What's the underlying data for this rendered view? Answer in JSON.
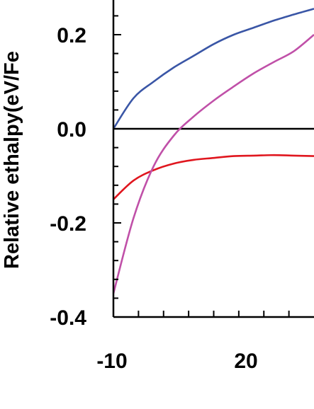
{
  "chart_data": {
    "type": "line",
    "title": "",
    "xlabel": "",
    "ylabel": "Relative ethalpy(eV/Fe",
    "xlim": [
      -10,
      30
    ],
    "ylim": [
      -0.4,
      0.26
    ],
    "x_ticks": [
      -10,
      20
    ],
    "x_tick_labels": [
      "-10",
      "20"
    ],
    "y_ticks": [
      -0.4,
      -0.2,
      0.0,
      0.2
    ],
    "y_tick_labels": [
      "-0.4",
      "-0.2",
      "0.0",
      "0.2"
    ],
    "reference_line_y": 0.0,
    "grid": false,
    "series": [
      {
        "color": "#3a56a6",
        "points": [
          [
            -10,
            0.0
          ],
          [
            -6,
            0.065
          ],
          [
            -2,
            0.1
          ],
          [
            2,
            0.13
          ],
          [
            6,
            0.155
          ],
          [
            10,
            0.18
          ],
          [
            14,
            0.2
          ],
          [
            18,
            0.215
          ],
          [
            22,
            0.23
          ],
          [
            26,
            0.243
          ],
          [
            30,
            0.255
          ]
        ]
      },
      {
        "color": "#e0161e",
        "points": [
          [
            -10,
            -0.15
          ],
          [
            -6,
            -0.11
          ],
          [
            -2,
            -0.088
          ],
          [
            2,
            -0.074
          ],
          [
            6,
            -0.066
          ],
          [
            10,
            -0.062
          ],
          [
            14,
            -0.058
          ],
          [
            18,
            -0.057
          ],
          [
            22,
            -0.056
          ],
          [
            26,
            -0.057
          ],
          [
            30,
            -0.058
          ]
        ]
      },
      {
        "color": "#c050a8",
        "points": [
          [
            -10,
            -0.35
          ],
          [
            -6,
            -0.19
          ],
          [
            -2,
            -0.08
          ],
          [
            2,
            -0.015
          ],
          [
            6,
            0.026
          ],
          [
            10,
            0.06
          ],
          [
            14,
            0.09
          ],
          [
            18,
            0.118
          ],
          [
            22,
            0.142
          ],
          [
            26,
            0.165
          ],
          [
            30,
            0.2
          ]
        ]
      }
    ]
  }
}
